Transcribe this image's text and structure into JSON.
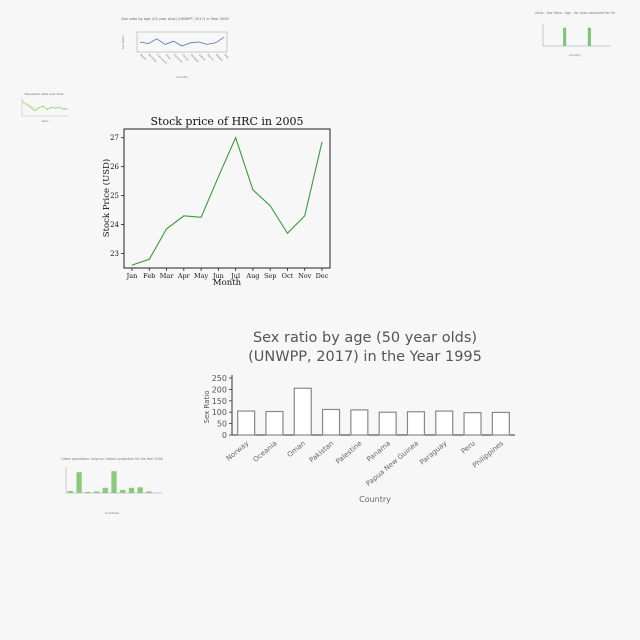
{
  "chart_data": [
    {
      "type": "line",
      "title": "Sex ratio by age (25 year olds) (UNWPP, 2017) in Year 2000",
      "xlabel": "Country",
      "ylabel": "Sex Ratio",
      "categories": [
        "Benin",
        "Burundi",
        "Cameroon",
        "Chad",
        "Comoros",
        "Congo",
        "Ethiopia",
        "Gabon",
        "Kenya",
        "Malawi",
        "Mali"
      ],
      "values": [
        100,
        98,
        104,
        97,
        101,
        95,
        99,
        100,
        97,
        99,
        106
      ],
      "ylim": [
        90,
        110
      ],
      "color": "#4f72b8"
    },
    {
      "type": "bar",
      "title": "Country - Bolivia - Sex Ratio - Age - for years observed for the year 2000",
      "xlabel": "Country",
      "ylabel": "",
      "categories": [
        "a",
        "b",
        "c",
        "d",
        "e",
        "f",
        "g",
        "h",
        "i",
        "j",
        "k"
      ],
      "values": [
        0,
        0,
        0,
        100,
        0,
        0,
        0,
        100,
        0,
        0,
        0
      ],
      "ylim": [
        0,
        120
      ],
      "color": "#7cc576"
    },
    {
      "type": "line",
      "title": "Population data over time",
      "xlabel": "Years",
      "categories": [
        "1",
        "2",
        "3",
        "4",
        "5",
        "6",
        "7",
        "8",
        "9",
        "10",
        "11",
        "12"
      ],
      "series": [
        {
          "values": [
            12,
            9,
            7,
            4,
            6,
            8,
            5,
            7,
            6,
            7,
            5,
            6
          ],
          "color": "#8bc34a"
        },
        {
          "values": [
            10,
            10,
            8,
            6,
            7,
            7,
            6,
            6,
            7,
            6,
            6,
            6
          ],
          "color": "#c5e1a5"
        }
      ],
      "ylim": [
        0,
        14
      ]
    },
    {
      "type": "line",
      "title": "Stock price of HRC in 2005",
      "xlabel": "Month",
      "ylabel": "Stock Price (USD)",
      "categories": [
        "Jan",
        "Feb",
        "Mar",
        "Apr",
        "May",
        "Jun",
        "Jul",
        "Aug",
        "Sep",
        "Oct",
        "Nov",
        "Dec"
      ],
      "values": [
        22.6,
        22.8,
        23.85,
        24.3,
        24.25,
        25.65,
        27.0,
        25.2,
        24.65,
        23.7,
        24.3,
        26.85
      ],
      "yticks": [
        23,
        24,
        25,
        26,
        27
      ],
      "ylim": [
        22.5,
        27.3
      ],
      "color": "#3a9a3a",
      "grid": false
    },
    {
      "type": "bar",
      "title": "Sex ratio by age (50 year olds) (UNWPP, 2017) in the Year 1995",
      "title_lines": [
        "Sex ratio by age (50 year olds)",
        "(UNWPP, 2017) in the Year 1995"
      ],
      "xlabel": "Country",
      "ylabel": "Sex Ratio",
      "categories": [
        "Norway",
        "Oceania",
        "Oman",
        "Pakistan",
        "Palestine",
        "Panama",
        "Papua New Guinea",
        "Paraguay",
        "Peru",
        "Philippines"
      ],
      "values": [
        105,
        103,
        205,
        112,
        110,
        100,
        102,
        105,
        98,
        99
      ],
      "yticks": [
        0,
        50,
        100,
        150,
        200,
        250
      ],
      "ylim": [
        0,
        250
      ],
      "color": "#888888"
    },
    {
      "type": "bar",
      "title": "Urban population: long-run historic projection for the Year 2006",
      "xlabel": "Countries",
      "ylabel": "",
      "categories": [
        "a",
        "b",
        "c",
        "d",
        "e",
        "f",
        "g",
        "h",
        "i",
        "j",
        "k"
      ],
      "values": [
        4,
        40,
        2,
        3,
        10,
        42,
        6,
        10,
        11,
        3,
        0
      ],
      "ylim": [
        0,
        50
      ],
      "color": "#8bc97a"
    }
  ]
}
